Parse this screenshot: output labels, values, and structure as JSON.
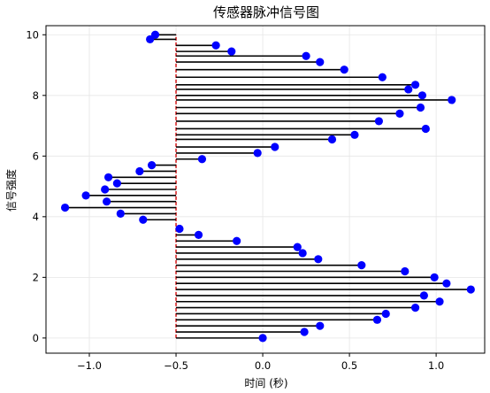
{
  "chart_data": {
    "type": "stem",
    "title": "传感器脉冲信号图",
    "xlabel": "时间 (秒)",
    "ylabel": "信号强度",
    "xlim": [
      -1.25,
      1.28
    ],
    "ylim": [
      -0.5,
      10.3
    ],
    "baseline_x": -0.5,
    "grid": true,
    "xticks": [
      -1.0,
      -0.5,
      0.0,
      0.5,
      1.0
    ],
    "xtick_labels": [
      "−1.0",
      "−0.5",
      "0.0",
      "0.5",
      "1.0"
    ],
    "yticks": [
      0,
      2,
      4,
      6,
      8,
      10
    ],
    "ytick_labels": [
      "0",
      "2",
      "4",
      "6",
      "8",
      "10"
    ],
    "colors": {
      "stem": "#000000",
      "marker": "#0000ff",
      "baseline": "#d62728"
    },
    "points": [
      {
        "y": 0.0,
        "x": 0.0
      },
      {
        "y": 0.2,
        "x": 0.24
      },
      {
        "y": 0.4,
        "x": 0.33
      },
      {
        "y": 0.6,
        "x": 0.66
      },
      {
        "y": 0.8,
        "x": 0.71
      },
      {
        "y": 1.0,
        "x": 0.88
      },
      {
        "y": 1.2,
        "x": 1.02
      },
      {
        "y": 1.4,
        "x": 0.93
      },
      {
        "y": 1.6,
        "x": 1.2
      },
      {
        "y": 1.8,
        "x": 1.06
      },
      {
        "y": 2.0,
        "x": 0.99
      },
      {
        "y": 2.2,
        "x": 0.82
      },
      {
        "y": 2.4,
        "x": 0.57
      },
      {
        "y": 2.6,
        "x": 0.32
      },
      {
        "y": 2.8,
        "x": 0.23
      },
      {
        "y": 3.0,
        "x": 0.2
      },
      {
        "y": 3.2,
        "x": -0.15
      },
      {
        "y": 3.4,
        "x": -0.37
      },
      {
        "y": 3.6,
        "x": -0.48
      },
      {
        "y": 3.9,
        "x": -0.69
      },
      {
        "y": 4.1,
        "x": -0.82
      },
      {
        "y": 4.3,
        "x": -1.14
      },
      {
        "y": 4.5,
        "x": -0.9
      },
      {
        "y": 4.7,
        "x": -1.02
      },
      {
        "y": 4.9,
        "x": -0.91
      },
      {
        "y": 5.1,
        "x": -0.84
      },
      {
        "y": 5.3,
        "x": -0.89
      },
      {
        "y": 5.5,
        "x": -0.71
      },
      {
        "y": 5.7,
        "x": -0.64
      },
      {
        "y": 5.9,
        "x": -0.35
      },
      {
        "y": 6.1,
        "x": -0.03
      },
      {
        "y": 6.3,
        "x": 0.07
      },
      {
        "y": 6.55,
        "x": 0.4
      },
      {
        "y": 6.7,
        "x": 0.53
      },
      {
        "y": 6.9,
        "x": 0.94
      },
      {
        "y": 7.15,
        "x": 0.67
      },
      {
        "y": 7.4,
        "x": 0.79
      },
      {
        "y": 7.6,
        "x": 0.91
      },
      {
        "y": 7.85,
        "x": 1.09
      },
      {
        "y": 8.0,
        "x": 0.92
      },
      {
        "y": 8.2,
        "x": 0.84
      },
      {
        "y": 8.35,
        "x": 0.88
      },
      {
        "y": 8.6,
        "x": 0.69
      },
      {
        "y": 8.85,
        "x": 0.47
      },
      {
        "y": 9.1,
        "x": 0.33
      },
      {
        "y": 9.3,
        "x": 0.25
      },
      {
        "y": 9.45,
        "x": -0.18
      },
      {
        "y": 9.65,
        "x": -0.27
      },
      {
        "y": 9.85,
        "x": -0.65
      },
      {
        "y": 10.0,
        "x": -0.62
      }
    ]
  }
}
